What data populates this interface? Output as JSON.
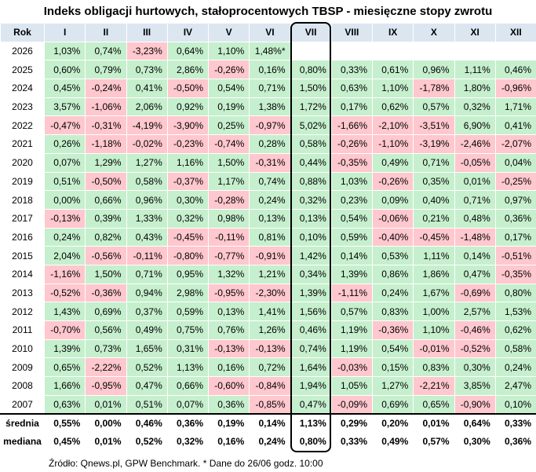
{
  "title": "Indeks obligacji hurtowych, stałoprocentowych TBSP - miesięczne stopy zwrotu",
  "header": {
    "year_label": "Rok",
    "months": [
      "I",
      "II",
      "III",
      "IV",
      "V",
      "VI",
      "VII",
      "VIII",
      "IX",
      "X",
      "XI",
      "XII"
    ]
  },
  "rows": [
    {
      "year": "2026",
      "values": [
        "1,03%",
        "0,74%",
        "-3,23%",
        "0,64%",
        "1,10%",
        "1,48%*",
        "",
        "",
        "",
        "",
        "",
        ""
      ]
    },
    {
      "year": "2025",
      "values": [
        "0,60%",
        "0,79%",
        "0,73%",
        "2,86%",
        "-0,26%",
        "0,16%",
        "0,80%",
        "0,33%",
        "0,61%",
        "0,96%",
        "1,11%",
        "0,46%"
      ]
    },
    {
      "year": "2024",
      "values": [
        "0,45%",
        "-0,24%",
        "0,41%",
        "-0,50%",
        "0,54%",
        "0,71%",
        "1,50%",
        "0,63%",
        "1,10%",
        "-1,78%",
        "1,80%",
        "-0,96%"
      ]
    },
    {
      "year": "2023",
      "values": [
        "3,57%",
        "-1,06%",
        "2,06%",
        "0,92%",
        "0,19%",
        "1,38%",
        "1,72%",
        "0,17%",
        "0,62%",
        "0,57%",
        "0,32%",
        "1,71%"
      ]
    },
    {
      "year": "2022",
      "values": [
        "-0,47%",
        "-0,31%",
        "-4,19%",
        "-3,90%",
        "0,25%",
        "-0,97%",
        "5,02%",
        "-1,66%",
        "-2,10%",
        "-3,51%",
        "6,90%",
        "0,41%"
      ]
    },
    {
      "year": "2021",
      "values": [
        "0,26%",
        "-1,18%",
        "-0,02%",
        "-0,23%",
        "-0,74%",
        "0,28%",
        "0,58%",
        "-0,26%",
        "-1,10%",
        "-3,19%",
        "-2,46%",
        "-2,07%"
      ]
    },
    {
      "year": "2020",
      "values": [
        "0,07%",
        "1,29%",
        "1,27%",
        "1,16%",
        "1,50%",
        "-0,31%",
        "0,44%",
        "-0,35%",
        "0,49%",
        "0,71%",
        "-0,05%",
        "0,04%"
      ]
    },
    {
      "year": "2019",
      "values": [
        "0,51%",
        "-0,50%",
        "0,58%",
        "-0,37%",
        "1,17%",
        "0,74%",
        "0,88%",
        "1,03%",
        "-0,26%",
        "0,35%",
        "0,01%",
        "-0,25%"
      ]
    },
    {
      "year": "2018",
      "values": [
        "0,00%",
        "0,66%",
        "0,96%",
        "0,30%",
        "-0,28%",
        "0,24%",
        "0,32%",
        "0,23%",
        "0,09%",
        "0,40%",
        "0,71%",
        "0,97%"
      ]
    },
    {
      "year": "2017",
      "values": [
        "-0,13%",
        "0,39%",
        "1,33%",
        "0,32%",
        "0,98%",
        "0,13%",
        "0,13%",
        "0,54%",
        "-0,06%",
        "0,21%",
        "0,48%",
        "0,36%"
      ]
    },
    {
      "year": "2016",
      "values": [
        "0,24%",
        "0,82%",
        "0,43%",
        "-0,45%",
        "-0,11%",
        "0,81%",
        "0,10%",
        "0,59%",
        "-0,40%",
        "-0,45%",
        "-1,48%",
        "0,17%"
      ]
    },
    {
      "year": "2015",
      "values": [
        "2,04%",
        "-0,56%",
        "-0,11%",
        "-0,80%",
        "-0,77%",
        "-0,91%",
        "1,42%",
        "0,14%",
        "0,53%",
        "1,11%",
        "0,14%",
        "-0,51%"
      ]
    },
    {
      "year": "2014",
      "values": [
        "-1,16%",
        "1,50%",
        "0,71%",
        "0,95%",
        "1,32%",
        "1,21%",
        "0,34%",
        "1,39%",
        "0,86%",
        "1,86%",
        "0,47%",
        "-0,35%"
      ]
    },
    {
      "year": "2013",
      "values": [
        "-0,52%",
        "-0,36%",
        "0,94%",
        "2,98%",
        "-0,95%",
        "-2,30%",
        "1,39%",
        "-1,11%",
        "0,24%",
        "1,67%",
        "-0,69%",
        "0,80%"
      ]
    },
    {
      "year": "2012",
      "values": [
        "1,43%",
        "0,69%",
        "0,37%",
        "0,59%",
        "0,13%",
        "1,41%",
        "1,56%",
        "0,57%",
        "0,83%",
        "1,00%",
        "2,57%",
        "1,53%"
      ]
    },
    {
      "year": "2011",
      "values": [
        "-0,70%",
        "0,56%",
        "0,49%",
        "0,75%",
        "0,76%",
        "1,26%",
        "0,46%",
        "1,19%",
        "-0,36%",
        "1,10%",
        "-0,46%",
        "0,62%"
      ]
    },
    {
      "year": "2010",
      "values": [
        "1,39%",
        "0,73%",
        "1,65%",
        "0,31%",
        "-0,13%",
        "-0,13%",
        "0,74%",
        "1,19%",
        "0,54%",
        "-0,01%",
        "-0,52%",
        "0,58%"
      ]
    },
    {
      "year": "2009",
      "values": [
        "0,65%",
        "-2,22%",
        "0,52%",
        "1,13%",
        "0,16%",
        "0,72%",
        "1,64%",
        "-0,03%",
        "0,15%",
        "0,83%",
        "0,30%",
        "0,24%"
      ]
    },
    {
      "year": "2008",
      "values": [
        "1,66%",
        "-0,95%",
        "0,47%",
        "0,66%",
        "-0,60%",
        "-0,84%",
        "1,94%",
        "1,05%",
        "1,27%",
        "-2,21%",
        "3,85%",
        "2,47%"
      ]
    },
    {
      "year": "2007",
      "values": [
        "0,63%",
        "0,01%",
        "0,51%",
        "0,07%",
        "0,36%",
        "-0,85%",
        "0,47%",
        "-0,09%",
        "0,69%",
        "0,65%",
        "-0,90%",
        "0,10%"
      ]
    }
  ],
  "summary": [
    {
      "label": "średnia",
      "values": [
        "0,55%",
        "0,00%",
        "0,46%",
        "0,36%",
        "0,19%",
        "0,14%",
        "1,13%",
        "0,29%",
        "0,20%",
        "0,01%",
        "0,64%",
        "0,33%"
      ]
    },
    {
      "label": "mediana",
      "values": [
        "0,45%",
        "0,01%",
        "0,52%",
        "0,32%",
        "0,16%",
        "0,24%",
        "0,80%",
        "0,33%",
        "0,49%",
        "0,57%",
        "0,30%",
        "0,36%"
      ]
    }
  ],
  "source_note": "Źródło: Qnews.pl, GPW Benchmark. * Dane do 26/06 godz. 10:00",
  "colors": {
    "positive_fill": "#c6efce",
    "negative_fill": "#ffc7ce",
    "header_fill": "#dce6f1",
    "highlight_border": "#000000"
  }
}
